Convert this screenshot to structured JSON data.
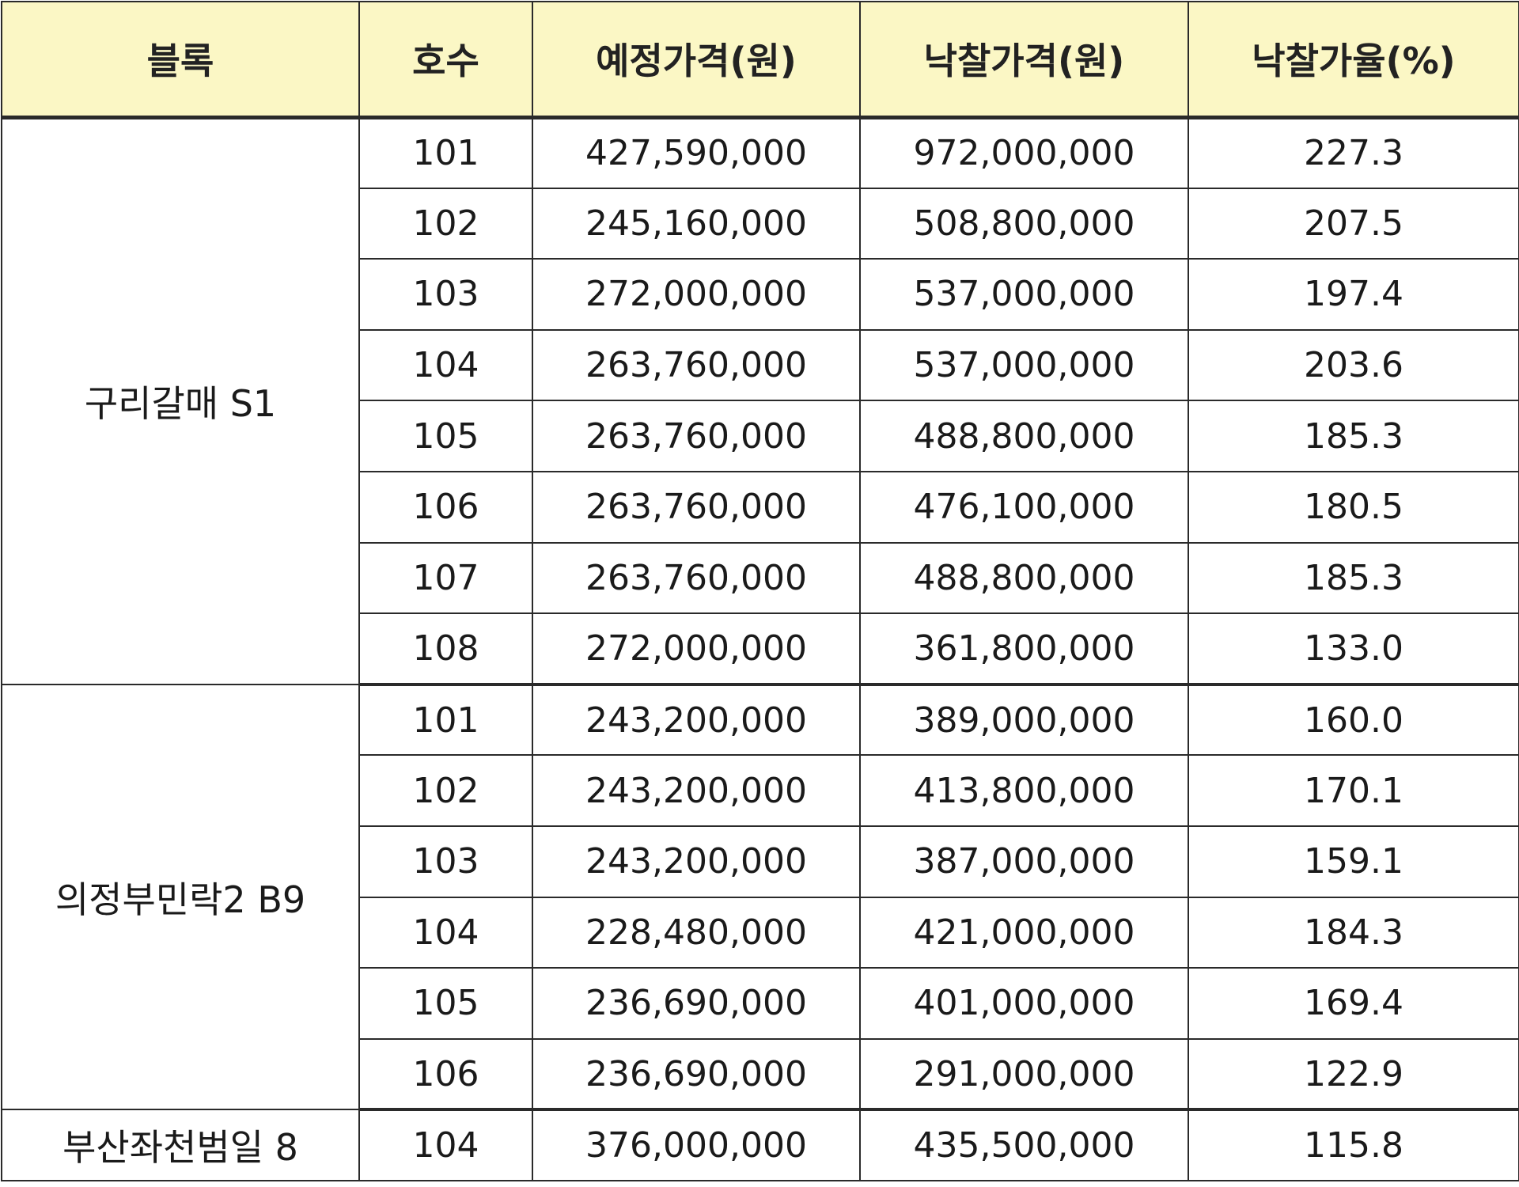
{
  "table": {
    "headers": [
      "블록",
      "호수",
      "예정가격(원)",
      "낙찰가격(원)",
      "낙찰가율(%)"
    ],
    "groups": [
      {
        "block": "구리갈매 S1",
        "rows": [
          {
            "unit": "101",
            "planned": "427,590,000",
            "winning": "972,000,000",
            "rate": "227.3"
          },
          {
            "unit": "102",
            "planned": "245,160,000",
            "winning": "508,800,000",
            "rate": "207.5"
          },
          {
            "unit": "103",
            "planned": "272,000,000",
            "winning": "537,000,000",
            "rate": "197.4"
          },
          {
            "unit": "104",
            "planned": "263,760,000",
            "winning": "537,000,000",
            "rate": "203.6"
          },
          {
            "unit": "105",
            "planned": "263,760,000",
            "winning": "488,800,000",
            "rate": "185.3"
          },
          {
            "unit": "106",
            "planned": "263,760,000",
            "winning": "476,100,000",
            "rate": "180.5"
          },
          {
            "unit": "107",
            "planned": "263,760,000",
            "winning": "488,800,000",
            "rate": "185.3"
          },
          {
            "unit": "108",
            "planned": "272,000,000",
            "winning": "361,800,000",
            "rate": "133.0"
          }
        ]
      },
      {
        "block": "의정부민락2 B9",
        "rows": [
          {
            "unit": "101",
            "planned": "243,200,000",
            "winning": "389,000,000",
            "rate": "160.0"
          },
          {
            "unit": "102",
            "planned": "243,200,000",
            "winning": "413,800,000",
            "rate": "170.1"
          },
          {
            "unit": "103",
            "planned": "243,200,000",
            "winning": "387,000,000",
            "rate": "159.1"
          },
          {
            "unit": "104",
            "planned": "228,480,000",
            "winning": "421,000,000",
            "rate": "184.3"
          },
          {
            "unit": "105",
            "planned": "236,690,000",
            "winning": "401,000,000",
            "rate": "169.4"
          },
          {
            "unit": "106",
            "planned": "236,690,000",
            "winning": "291,000,000",
            "rate": "122.9"
          }
        ]
      },
      {
        "block": "부산좌천범일 8",
        "rows": [
          {
            "unit": "104",
            "planned": "376,000,000",
            "winning": "435,500,000",
            "rate": "115.8"
          }
        ]
      }
    ]
  }
}
